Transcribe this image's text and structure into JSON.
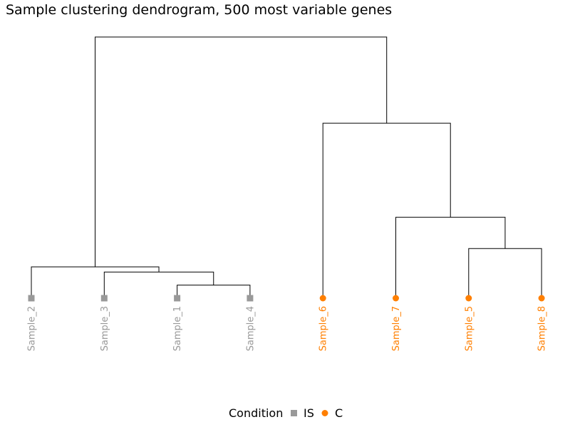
{
  "title": "Sample clustering dendrogram, 500 most variable genes",
  "legend": {
    "title": "Condition",
    "items": [
      {
        "label": "IS",
        "shape": "square",
        "color": "#999999"
      },
      {
        "label": "C",
        "shape": "circle",
        "color": "#FF7F00"
      }
    ]
  },
  "chart_data": {
    "type": "dendrogram",
    "title": "Sample clustering dendrogram, 500 most variable genes",
    "axes_visible": false,
    "legend_position": "bottom",
    "leaves": [
      {
        "label": "Sample_2",
        "condition": "IS"
      },
      {
        "label": "Sample_3",
        "condition": "IS"
      },
      {
        "label": "Sample_1",
        "condition": "IS"
      },
      {
        "label": "Sample_4",
        "condition": "IS"
      },
      {
        "label": "Sample_6",
        "condition": "C"
      },
      {
        "label": "Sample_7",
        "condition": "C"
      },
      {
        "label": "Sample_5",
        "condition": "C"
      },
      {
        "label": "Sample_8",
        "condition": "C"
      }
    ],
    "merges": [
      {
        "id": "m1",
        "left": "Sample_1",
        "right": "Sample_4",
        "height": 0.05
      },
      {
        "id": "m2",
        "left": "Sample_3",
        "right": "m1",
        "height": 0.1
      },
      {
        "id": "m3",
        "left": "Sample_2",
        "right": "m2",
        "height": 0.12
      },
      {
        "id": "m4",
        "left": "Sample_5",
        "right": "Sample_8",
        "height": 0.19
      },
      {
        "id": "m5",
        "left": "Sample_7",
        "right": "m4",
        "height": 0.31
      },
      {
        "id": "m6",
        "left": "Sample_6",
        "right": "m5",
        "height": 0.67
      },
      {
        "id": "m7",
        "left": "m3",
        "right": "m6",
        "height": 1.0
      }
    ],
    "colors": {
      "IS": "#999999",
      "C": "#FF7F00",
      "branches": "#000000"
    }
  }
}
